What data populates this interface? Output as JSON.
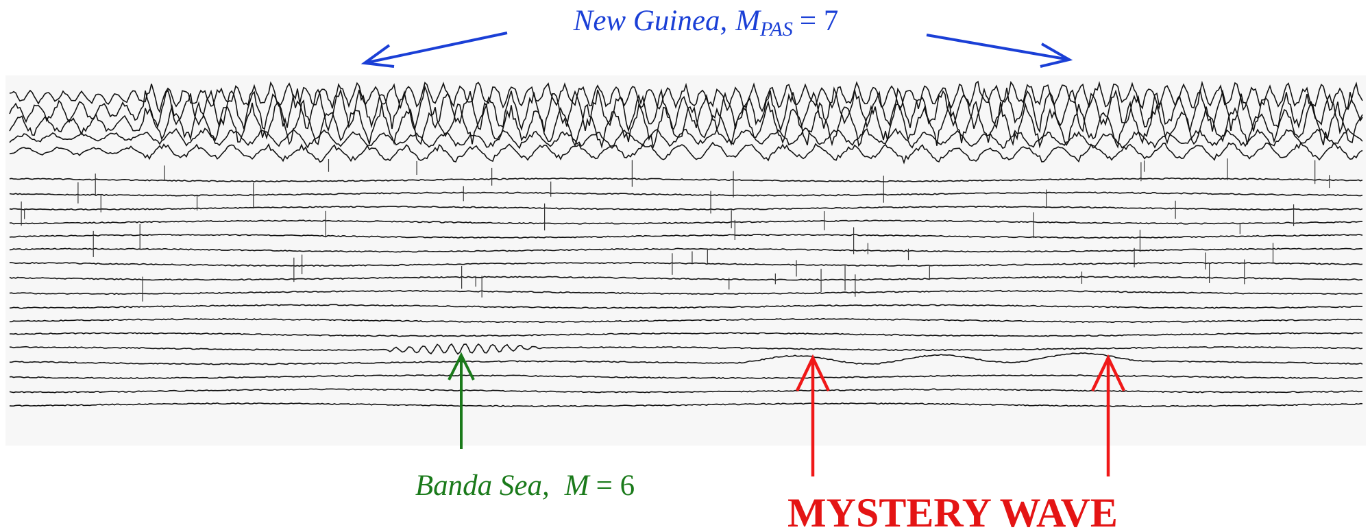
{
  "annotations": {
    "new_guinea": {
      "name": "New Guinea,",
      "symbol": "M",
      "subscript": "PAS",
      "magnitude": "= 7"
    },
    "banda_sea": {
      "name": "Banda Sea,",
      "symbol": "M",
      "magnitude": "= 6"
    },
    "mystery": "MYSTERY WAVE"
  }
}
